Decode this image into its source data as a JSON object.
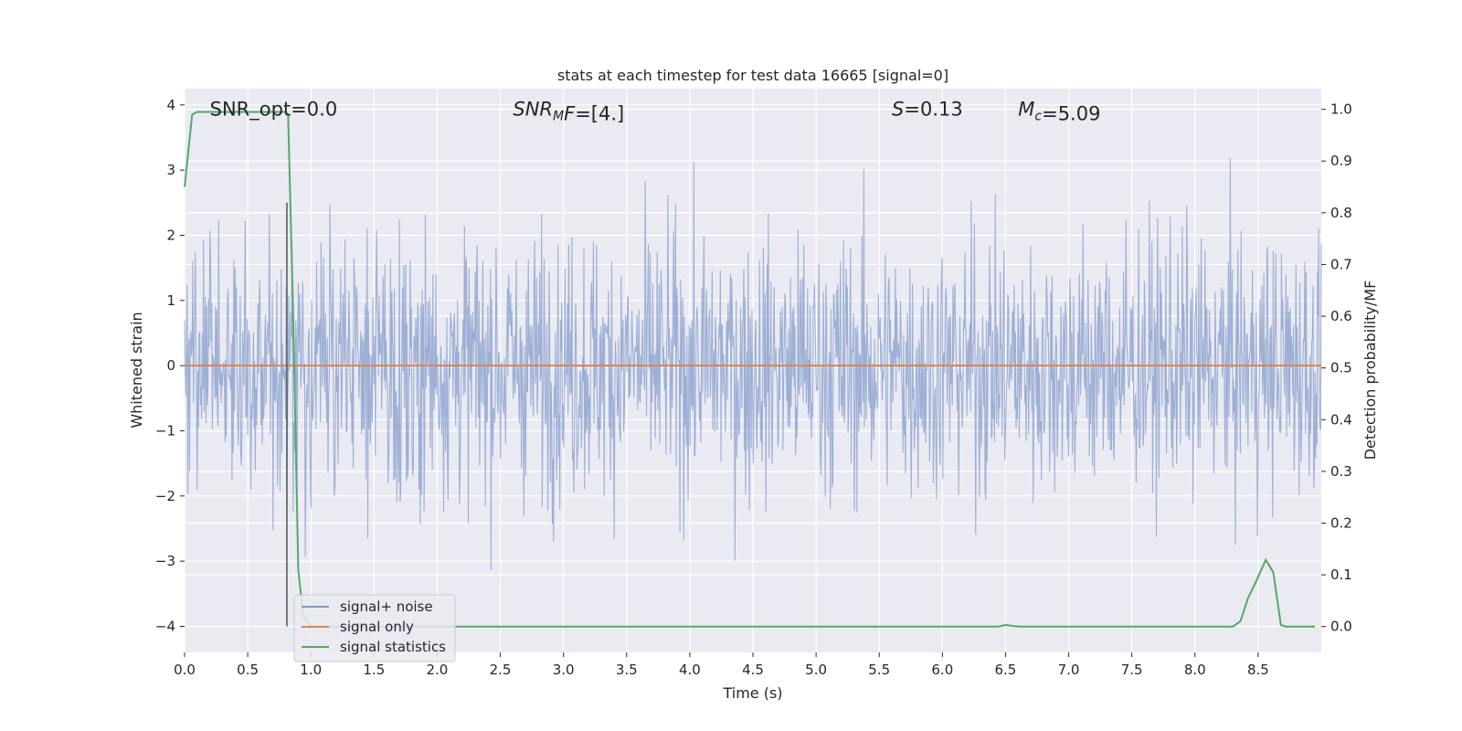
{
  "chart_data": {
    "type": "line",
    "title": "stats at each timestep for test data 16665 [signal=0]",
    "xlabel": "Time (s)",
    "ylabel_left": "Whitened strain",
    "ylabel_right": "Detection probability/MF",
    "xlim": [
      0.0,
      9.0
    ],
    "ylim_left": [
      -4.4,
      4.25
    ],
    "ylim_right": [
      -0.05,
      1.04
    ],
    "x_ticks": [
      0.0,
      0.5,
      1.0,
      1.5,
      2.0,
      2.5,
      3.0,
      3.5,
      4.0,
      4.5,
      5.0,
      5.5,
      6.0,
      6.5,
      7.0,
      7.5,
      8.0,
      8.5
    ],
    "x_tick_labels": [
      "0.0",
      "0.5",
      "1.0",
      "1.5",
      "2.0",
      "2.5",
      "3.0",
      "3.5",
      "4.0",
      "4.5",
      "5.0",
      "5.5",
      "6.0",
      "6.5",
      "7.0",
      "7.5",
      "8.0",
      "8.5"
    ],
    "y_left_ticks": [
      4,
      3,
      2,
      1,
      0,
      -1,
      -2,
      -3,
      -4
    ],
    "y_left_tick_labels": [
      "4",
      "3",
      "2",
      "1",
      "0",
      "−1",
      "−2",
      "−3",
      "−4"
    ],
    "y_right_ticks": [
      1.0,
      0.9,
      0.8,
      0.7,
      0.6,
      0.5,
      0.4,
      0.3,
      0.2,
      0.1,
      0.0
    ],
    "y_right_tick_labels": [
      "1.0",
      "0.9",
      "0.8",
      "0.7",
      "0.6",
      "0.5",
      "0.4",
      "0.3",
      "0.2",
      "0.1",
      "0.0"
    ],
    "grid": true,
    "legend_placement": "lower-left",
    "annotations": [
      {
        "text": "SNR_opt=0.0",
        "x": 0.2,
        "y": 3.95
      },
      {
        "text": "SNR_MF=[4.]",
        "x": 2.6,
        "y": 3.95
      },
      {
        "text": "S=0.13",
        "x": 5.6,
        "y": 3.95
      },
      {
        "text": "M_c=5.09",
        "x": 6.6,
        "y": 3.95
      }
    ],
    "marker_line": {
      "x": 0.81,
      "y": [
        -4.0,
        2.5
      ]
    },
    "series": [
      {
        "name": "signal+ noise",
        "axis": "left",
        "color": "#7f98c9",
        "description": "whitened noise, values roughly within ±3.5",
        "sample_count": 1800,
        "envelope": [
          -3.75,
          3.7
        ]
      },
      {
        "name": "signal only",
        "axis": "left",
        "color": "#dd8452",
        "x": [
          0.0,
          9.0
        ],
        "values": [
          0.0,
          0.0
        ]
      },
      {
        "name": "signal statistics",
        "axis": "right",
        "color": "#55a868",
        "x": [
          0.0,
          0.06,
          0.1,
          0.15,
          0.2,
          0.3,
          0.4,
          0.5,
          0.6,
          0.7,
          0.75,
          0.8,
          0.82,
          0.86,
          0.9,
          0.94,
          1.0,
          1.5,
          2.0,
          3.0,
          4.0,
          5.0,
          6.0,
          6.44,
          6.5,
          6.56,
          6.62,
          7.0,
          7.5,
          8.0,
          8.3,
          8.36,
          8.42,
          8.48,
          8.56,
          8.62,
          8.68,
          8.72,
          8.8,
          8.95
        ],
        "values": [
          0.85,
          0.99,
          0.995,
          0.995,
          0.995,
          0.995,
          0.995,
          0.995,
          0.995,
          0.995,
          0.995,
          0.995,
          0.99,
          0.6,
          0.11,
          0.02,
          0.0,
          0.0,
          0.0,
          0.0,
          0.0,
          0.0,
          0.0,
          0.0,
          0.003,
          0.001,
          0.0,
          0.0,
          0.0,
          0.0,
          0.0,
          0.01,
          0.055,
          0.085,
          0.129,
          0.105,
          0.003,
          0.0,
          0.0,
          0.0
        ]
      }
    ]
  }
}
